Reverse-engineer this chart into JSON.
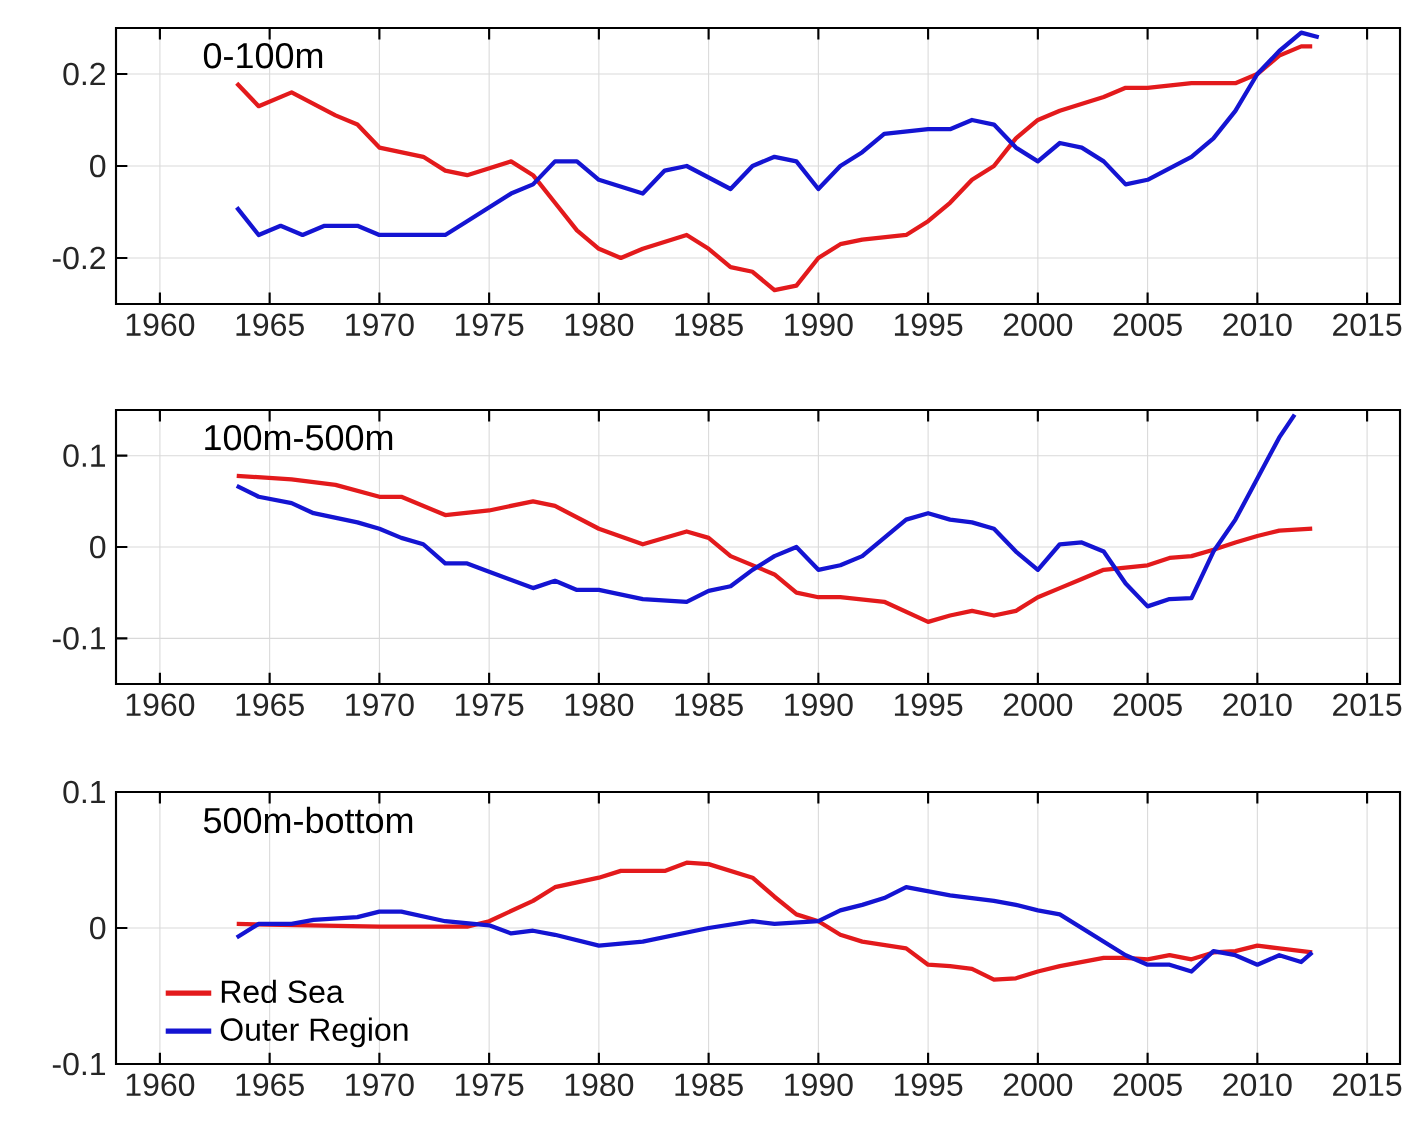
{
  "chart_data": [
    {
      "type": "line",
      "annotations": [
        "0-100m"
      ],
      "xlim": [
        1958,
        2016.5
      ],
      "ylim": [
        -0.3,
        0.3
      ],
      "xticks": [
        1960,
        1965,
        1970,
        1975,
        1980,
        1985,
        1990,
        1995,
        2000,
        2005,
        2010,
        2015
      ],
      "yticks": [
        -0.2,
        0,
        0.2
      ],
      "grid": true,
      "legend": false,
      "series": [
        {
          "color": "#e31a1c",
          "x": [
            1963.5,
            1964.5,
            1966,
            1968,
            1969,
            1970,
            1972,
            1973,
            1974,
            1976,
            1977,
            1978,
            1979,
            1980,
            1981,
            1982,
            1984,
            1985,
            1986,
            1987,
            1988,
            1989,
            1990,
            1991,
            1992,
            1994,
            1995,
            1996,
            1997,
            1998,
            1999,
            2000,
            2001,
            2003,
            2004,
            2005,
            2007,
            2009,
            2010,
            2011,
            2012,
            2012.5
          ],
          "values": [
            0.18,
            0.13,
            0.16,
            0.11,
            0.09,
            0.04,
            0.02,
            -0.01,
            -0.02,
            0.01,
            -0.02,
            -0.08,
            -0.14,
            -0.18,
            -0.2,
            -0.18,
            -0.15,
            -0.18,
            -0.22,
            -0.23,
            -0.27,
            -0.26,
            -0.2,
            -0.17,
            -0.16,
            -0.15,
            -0.12,
            -0.08,
            -0.03,
            0.0,
            0.06,
            0.1,
            0.12,
            0.15,
            0.17,
            0.17,
            0.18,
            0.18,
            0.2,
            0.24,
            0.26,
            0.26
          ]
        },
        {
          "color": "#1414d2",
          "x": [
            1963.5,
            1964.5,
            1965.5,
            1966.5,
            1967.5,
            1969,
            1970,
            1971,
            1973,
            1974,
            1975,
            1976,
            1977,
            1978,
            1979,
            1980,
            1982,
            1983,
            1984,
            1986,
            1987,
            1988,
            1989,
            1990,
            1991,
            1992,
            1993,
            1995,
            1996,
            1997,
            1998,
            1999,
            2000,
            2001,
            2002,
            2003,
            2004,
            2005,
            2007,
            2008,
            2009,
            2010,
            2011,
            2012,
            2012.8
          ],
          "values": [
            -0.09,
            -0.15,
            -0.13,
            -0.15,
            -0.13,
            -0.13,
            -0.15,
            -0.15,
            -0.15,
            -0.12,
            -0.09,
            -0.06,
            -0.04,
            0.01,
            0.01,
            -0.03,
            -0.06,
            -0.01,
            0.0,
            -0.05,
            0.0,
            0.02,
            0.01,
            -0.05,
            0.0,
            0.03,
            0.07,
            0.08,
            0.08,
            0.1,
            0.09,
            0.04,
            0.01,
            0.05,
            0.04,
            0.01,
            -0.04,
            -0.03,
            0.02,
            0.06,
            0.12,
            0.2,
            0.25,
            0.29,
            0.28
          ]
        }
      ]
    },
    {
      "type": "line",
      "annotations": [
        "100m-500m"
      ],
      "xlim": [
        1958,
        2016.5
      ],
      "ylim": [
        -0.15,
        0.15
      ],
      "xticks": [
        1960,
        1965,
        1970,
        1975,
        1980,
        1985,
        1990,
        1995,
        2000,
        2005,
        2010,
        2015
      ],
      "yticks": [
        -0.1,
        0,
        0.1
      ],
      "grid": true,
      "legend": false,
      "series": [
        {
          "color": "#e31a1c",
          "x": [
            1963.5,
            1966,
            1968,
            1970,
            1971,
            1973,
            1975,
            1977,
            1978,
            1980,
            1982,
            1984,
            1985,
            1986,
            1988,
            1989,
            1990,
            1991,
            1993,
            1995,
            1996,
            1997,
            1998,
            1999,
            2000,
            2001,
            2002,
            2003,
            2005,
            2006,
            2007,
            2008,
            2009,
            2010,
            2011,
            2012.5
          ],
          "values": [
            0.078,
            0.074,
            0.068,
            0.055,
            0.055,
            0.035,
            0.04,
            0.05,
            0.045,
            0.02,
            0.003,
            0.017,
            0.01,
            -0.01,
            -0.03,
            -0.05,
            -0.055,
            -0.055,
            -0.06,
            -0.082,
            -0.075,
            -0.07,
            -0.075,
            -0.07,
            -0.055,
            -0.045,
            -0.035,
            -0.025,
            -0.02,
            -0.012,
            -0.01,
            -0.003,
            0.005,
            0.012,
            0.018,
            0.02
          ]
        },
        {
          "color": "#1414d2",
          "x": [
            1963.5,
            1964.5,
            1966,
            1967,
            1969,
            1970,
            1971,
            1972,
            1973,
            1974,
            1975,
            1977,
            1978,
            1979,
            1980,
            1982,
            1984,
            1985,
            1986,
            1987,
            1988,
            1989,
            1990,
            1991,
            1992,
            1994,
            1995,
            1996,
            1997,
            1998,
            1999,
            2000,
            2001,
            2002,
            2003,
            2004,
            2005,
            2006,
            2007,
            2008,
            2009,
            2010,
            2011,
            2011.7
          ],
          "values": [
            0.067,
            0.055,
            0.048,
            0.037,
            0.027,
            0.02,
            0.01,
            0.003,
            -0.018,
            -0.018,
            -0.027,
            -0.045,
            -0.037,
            -0.047,
            -0.047,
            -0.057,
            -0.06,
            -0.048,
            -0.043,
            -0.025,
            -0.01,
            0.0,
            -0.025,
            -0.02,
            -0.01,
            0.03,
            0.037,
            0.03,
            0.027,
            0.02,
            -0.005,
            -0.025,
            0.003,
            0.005,
            -0.005,
            -0.04,
            -0.065,
            -0.057,
            -0.056,
            -0.005,
            0.03,
            0.075,
            0.12,
            0.145
          ]
        }
      ]
    },
    {
      "type": "line",
      "annotations": [
        "500m-bottom"
      ],
      "xlim": [
        1958,
        2016.5
      ],
      "ylim": [
        -0.1,
        0.1
      ],
      "xticks": [
        1960,
        1965,
        1970,
        1975,
        1980,
        1985,
        1990,
        1995,
        2000,
        2005,
        2010,
        2015
      ],
      "yticks": [
        -0.1,
        0,
        0.1
      ],
      "grid": true,
      "legend": "bottom left",
      "series": [
        {
          "name": "Red Sea",
          "color": "#e31a1c",
          "x": [
            1963.5,
            1970,
            1974,
            1975,
            1977,
            1978,
            1980,
            1981,
            1983,
            1984,
            1985,
            1987,
            1988,
            1989,
            1990,
            1991,
            1992,
            1994,
            1995,
            1996,
            1997,
            1998,
            1999,
            2000,
            2001,
            2003,
            2004,
            2005,
            2006,
            2007,
            2008,
            2009,
            2010,
            2011,
            2012.5
          ],
          "values": [
            0.003,
            0.001,
            0.001,
            0.005,
            0.02,
            0.03,
            0.037,
            0.042,
            0.042,
            0.048,
            0.047,
            0.037,
            0.023,
            0.01,
            0.005,
            -0.005,
            -0.01,
            -0.015,
            -0.027,
            -0.028,
            -0.03,
            -0.038,
            -0.037,
            -0.032,
            -0.028,
            -0.022,
            -0.022,
            -0.023,
            -0.02,
            -0.023,
            -0.018,
            -0.017,
            -0.013,
            -0.015,
            -0.018
          ]
        },
        {
          "name": "Outer Region",
          "color": "#1414d2",
          "x": [
            1963.5,
            1964.5,
            1966,
            1967,
            1969,
            1970,
            1971,
            1973,
            1975,
            1976,
            1977,
            1978,
            1980,
            1982,
            1985,
            1987,
            1988,
            1990,
            1991,
            1992,
            1993,
            1994,
            1996,
            1998,
            1999,
            2000,
            2001,
            2002,
            2003,
            2004,
            2005,
            2006,
            2007,
            2008,
            2009,
            2010,
            2011,
            2012,
            2012.5
          ],
          "values": [
            -0.007,
            0.003,
            0.003,
            0.006,
            0.008,
            0.012,
            0.012,
            0.005,
            0.002,
            -0.004,
            -0.002,
            -0.005,
            -0.013,
            -0.01,
            0.0,
            0.005,
            0.003,
            0.005,
            0.013,
            0.017,
            0.022,
            0.03,
            0.024,
            0.02,
            0.017,
            0.013,
            0.01,
            0.0,
            -0.01,
            -0.02,
            -0.027,
            -0.027,
            -0.032,
            -0.017,
            -0.02,
            -0.027,
            -0.02,
            -0.025,
            -0.018
          ]
        }
      ]
    }
  ]
}
